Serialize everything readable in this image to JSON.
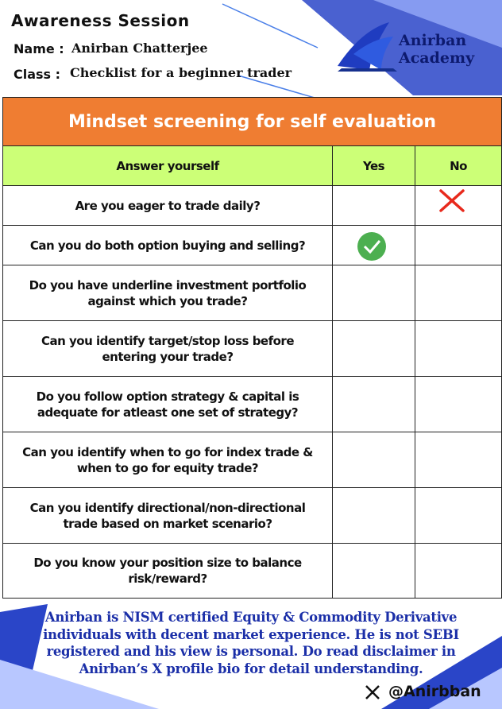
{
  "header": {
    "title": "Awareness Session",
    "name_label": "Name :",
    "name": "Anirban Chatterjee",
    "class_label": "Class :",
    "class": "Checklist for a beginner trader"
  },
  "logo": {
    "line1": "Anirban",
    "line2": "Academy"
  },
  "table": {
    "title": "Mindset screening for self evaluation",
    "columns": [
      "Answer yourself",
      "Yes",
      "No"
    ],
    "rows": [
      "Are you eager to trade daily?",
      "Can you do both option buying and selling?",
      "Do you have underline investment portfolio  against which you trade?",
      "Can you identify target/stop loss before entering your trade?",
      "Do you follow option strategy & capital is adequate for atleast one set of strategy?",
      "Can you identify when to go for index trade & when to go for equity trade?",
      "Can you identify directional/non-directional trade based on market scenario?",
      "Do you know your position size to balance risk/reward?"
    ]
  },
  "footer": {
    "disclaimer": "Anirban is NISM certified Equity & Commodity Derivative individuals with decent market experience. He is not SEBI registered and his view is personal. Do read disclaimer in Anirban’s X profile bio for detail understanding.",
    "handle": "@Anirbban"
  }
}
